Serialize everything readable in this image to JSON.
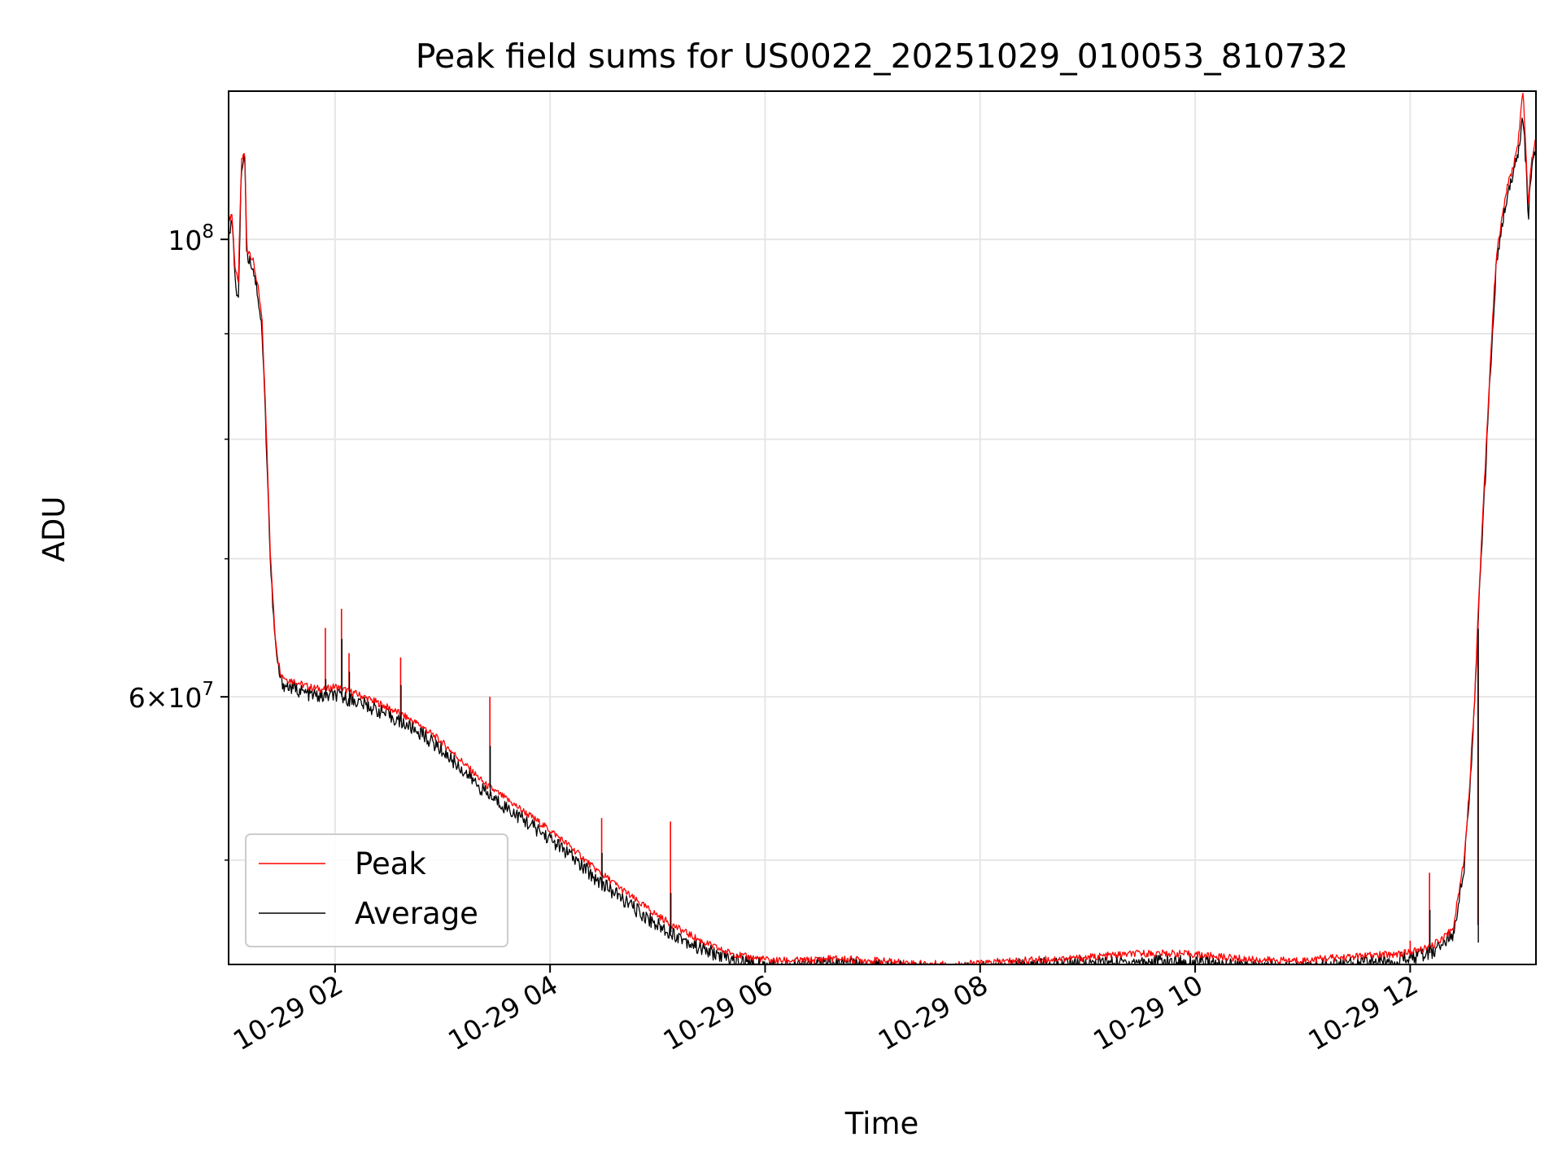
{
  "chart_data": {
    "type": "line",
    "title": "Peak field sums for US0022_20251029_010053_810732",
    "xlabel": "Time",
    "ylabel": "ADU",
    "x_unit": "hours since 10-29 00:00",
    "xlim": [
      1.01,
      13.17
    ],
    "ylim": [
      44500000,
      118000000
    ],
    "yscale": "log",
    "x_ticks": [
      {
        "value": 2,
        "label": "10-29 02"
      },
      {
        "value": 4,
        "label": "10-29 04"
      },
      {
        "value": 6,
        "label": "10-29 06"
      },
      {
        "value": 8,
        "label": "10-29 08"
      },
      {
        "value": 10,
        "label": "10-29 10"
      },
      {
        "value": 12,
        "label": "10-29 12"
      }
    ],
    "y_major_ticks": [
      {
        "value": 60000000,
        "mantissa": "6",
        "base": "10",
        "exp": "7"
      },
      {
        "value": 100000000,
        "mantissa": "",
        "base": "10",
        "exp": "8"
      }
    ],
    "y_minor_ticks": [
      50000000,
      70000000,
      80000000,
      90000000
    ],
    "grid": true,
    "legend_position": "lower-left",
    "colors": {
      "peak": "#ff0000",
      "average": "#000000",
      "grid": "#e6e6e6"
    },
    "series": [
      {
        "name": "Peak",
        "key": "peak",
        "x": [
          1.01,
          1.04,
          1.07,
          1.1,
          1.13,
          1.16,
          1.18,
          1.2,
          1.24,
          1.28,
          1.32,
          1.36,
          1.4,
          1.44,
          1.47,
          1.5,
          1.55,
          1.6,
          1.65,
          1.7,
          1.8,
          1.9,
          2.0,
          2.2,
          2.4,
          2.6,
          2.8,
          3.0,
          3.2,
          3.4,
          3.6,
          3.8,
          4.0,
          4.2,
          4.4,
          4.6,
          4.8,
          5.0,
          5.2,
          5.4,
          5.6,
          5.8,
          5.95,
          6.05,
          6.2,
          6.4,
          6.6,
          7.0,
          7.4,
          7.8,
          8.0,
          8.2,
          8.6,
          9.0,
          9.2,
          9.5,
          9.8,
          10.0,
          10.2,
          10.5,
          10.8,
          11.0,
          11.2,
          11.5,
          11.8,
          12.0,
          12.2,
          12.4,
          12.5,
          12.55,
          12.6,
          12.7,
          12.8,
          12.85,
          12.9,
          12.95,
          13.0,
          13.05,
          13.08,
          13.1,
          13.12,
          13.15,
          13.17
        ],
        "y": [
          102000000,
          103000000,
          97000000,
          95000000,
          109000000,
          110500000,
          98500000,
          98800000,
          97500000,
          95000000,
          91500000,
          81000000,
          70000000,
          64500000,
          62500000,
          61500000,
          61200000,
          61100000,
          61000000,
          60800000,
          60600000,
          60500000,
          60700000,
          60200000,
          59600000,
          58900000,
          58100000,
          57000000,
          55700000,
          54400000,
          53500000,
          52600000,
          51700000,
          50700000,
          49600000,
          48700000,
          47800000,
          47000000,
          46300000,
          45700000,
          45200000,
          44900000,
          44800000,
          44700000,
          44700000,
          44700000,
          44800000,
          44700000,
          44550000,
          44500000,
          44550000,
          44650000,
          44750000,
          44850000,
          44950000,
          45050000,
          45050000,
          45000000,
          44900000,
          44750000,
          44700000,
          44700000,
          44800000,
          44900000,
          45000000,
          45100000,
          45400000,
          46300000,
          50000000,
          54000000,
          60000000,
          78000000,
          98000000,
          102000000,
          106000000,
          108000000,
          111000000,
          118000000,
          109000000,
          104000000,
          108000000,
          111000000,
          111500000
        ]
      },
      {
        "name": "Average",
        "key": "average",
        "x": [
          1.01,
          1.04,
          1.07,
          1.1,
          1.13,
          1.16,
          1.18,
          1.2,
          1.24,
          1.28,
          1.32,
          1.36,
          1.4,
          1.44,
          1.47,
          1.5,
          1.55,
          1.6,
          1.65,
          1.7,
          1.8,
          1.9,
          2.0,
          2.2,
          2.4,
          2.6,
          2.8,
          3.0,
          3.2,
          3.4,
          3.6,
          3.8,
          4.0,
          4.2,
          4.4,
          4.6,
          4.8,
          5.0,
          5.2,
          5.4,
          5.6,
          5.8,
          5.95,
          6.05,
          6.2,
          6.4,
          6.6,
          7.0,
          7.4,
          7.8,
          8.0,
          8.2,
          8.6,
          9.0,
          9.2,
          9.5,
          9.8,
          10.0,
          10.2,
          10.5,
          10.8,
          11.0,
          11.2,
          11.5,
          11.8,
          12.0,
          12.2,
          12.4,
          12.5,
          12.55,
          12.6,
          12.7,
          12.8,
          12.85,
          12.9,
          12.95,
          13.0,
          13.05,
          13.08,
          13.1,
          13.12,
          13.15,
          13.17
        ],
        "y": [
          101000000,
          102000000,
          96000000,
          93000000,
          108500000,
          110000000,
          97800000,
          98000000,
          96800000,
          94200000,
          90500000,
          80000000,
          69300000,
          64000000,
          62000000,
          61000000,
          60700000,
          60600000,
          60500000,
          60300000,
          60100000,
          60000000,
          60100000,
          59700000,
          59100000,
          58400000,
          57600000,
          56500000,
          55200000,
          53900000,
          53000000,
          52100000,
          51200000,
          50200000,
          49100000,
          48200000,
          47300000,
          46500000,
          45900000,
          45300000,
          44900000,
          44600000,
          44500000,
          44450000,
          44450000,
          44450000,
          44550000,
          44450000,
          44300000,
          44250000,
          44300000,
          44400000,
          44500000,
          44600000,
          44600000,
          44650000,
          44650000,
          44600000,
          44500000,
          44400000,
          44350000,
          44400000,
          44500000,
          44550000,
          44700000,
          44800000,
          45100000,
          46000000,
          49500000,
          53500000,
          59500000,
          77000000,
          97000000,
          101000000,
          105000000,
          107000000,
          110000000,
          115000000,
          108000000,
          102500000,
          107000000,
          110000000,
          110500000
        ]
      }
    ],
    "spikes": [
      {
        "x": 1.91,
        "peak": 64800000,
        "average": 61200000
      },
      {
        "x": 2.06,
        "peak": 66200000,
        "average": 64000000
      },
      {
        "x": 2.13,
        "peak": 63000000,
        "average": 61700000
      },
      {
        "x": 2.61,
        "peak": 62700000,
        "average": 60800000
      },
      {
        "x": 3.44,
        "peak": 60000000,
        "average": 56800000
      },
      {
        "x": 4.48,
        "peak": 52400000,
        "average": 50400000
      },
      {
        "x": 5.12,
        "peak": 52200000,
        "average": 48200000
      },
      {
        "x": 6.55,
        "peak": 44800000,
        "average": 44500000
      },
      {
        "x": 12.18,
        "peak": 49300000,
        "average": 47300000
      },
      {
        "x": 12.0,
        "peak": 45700000,
        "average": 45000000
      },
      {
        "x": 12.63,
        "peak": 46500000,
        "average": 45600000
      }
    ]
  }
}
